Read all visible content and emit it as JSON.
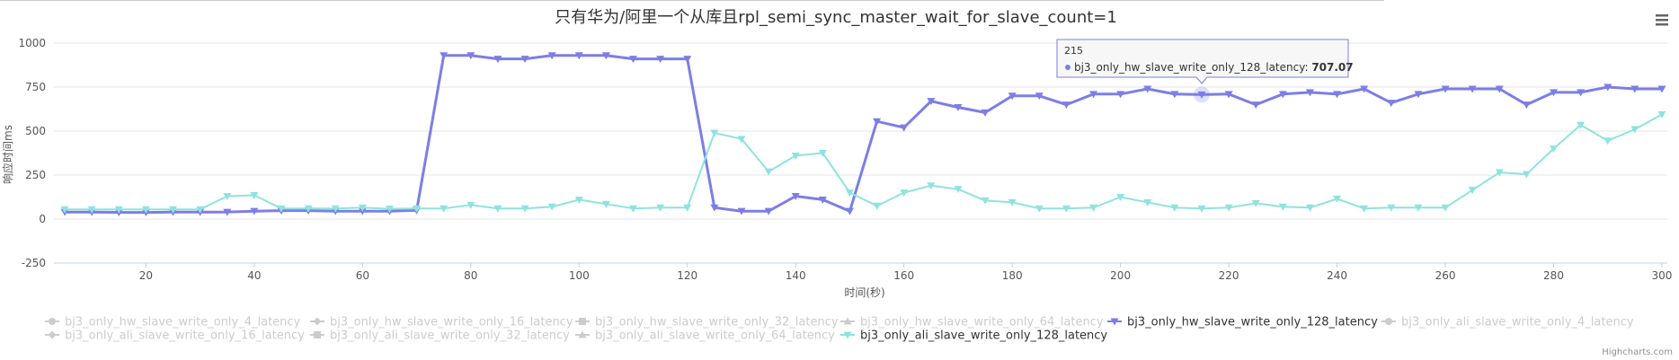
{
  "chart_data": {
    "type": "line",
    "title": "只有华为/阿里一个从库且rpl_semi_sync_master_wait_for_slave_count=1",
    "xlabel": "时间(秒)",
    "ylabel": "响应时间ms",
    "xlim": [
      3,
      301
    ],
    "ylim": [
      -250,
      1000
    ],
    "xticks": [
      20,
      40,
      60,
      80,
      100,
      120,
      140,
      160,
      180,
      200,
      220,
      240,
      260,
      280,
      300
    ],
    "yticks": [
      -250,
      0,
      250,
      500,
      750,
      1000
    ],
    "grid": true,
    "legend_position": "bottom",
    "x": [
      5,
      10,
      15,
      20,
      25,
      30,
      35,
      40,
      45,
      50,
      55,
      60,
      65,
      70,
      75,
      80,
      85,
      90,
      95,
      100,
      105,
      110,
      115,
      120,
      125,
      130,
      135,
      140,
      145,
      150,
      155,
      160,
      165,
      170,
      175,
      180,
      185,
      190,
      195,
      200,
      205,
      210,
      215,
      220,
      225,
      230,
      235,
      240,
      245,
      250,
      255,
      260,
      265,
      270,
      275,
      280,
      285,
      290,
      295,
      300
    ],
    "series": [
      {
        "name": "bj3_only_hw_slave_write_only_4_latency",
        "visible": false,
        "marker": "circle"
      },
      {
        "name": "bj3_only_hw_slave_write_only_16_latency",
        "visible": false,
        "marker": "diamond"
      },
      {
        "name": "bj3_only_hw_slave_write_only_32_latency",
        "visible": false,
        "marker": "square"
      },
      {
        "name": "bj3_only_hw_slave_write_only_64_latency",
        "visible": false,
        "marker": "triangle"
      },
      {
        "name": "bj3_only_hw_slave_write_only_128_latency",
        "visible": true,
        "marker": "triangle-down",
        "color": "#7c7ee6",
        "values": [
          40,
          40,
          38,
          38,
          40,
          40,
          40,
          45,
          48,
          48,
          45,
          45,
          45,
          50,
          930,
          930,
          910,
          910,
          930,
          930,
          930,
          910,
          910,
          910,
          65,
          45,
          45,
          130,
          110,
          45,
          555,
          520,
          670,
          635,
          605,
          700,
          700,
          650,
          710,
          710,
          740,
          710,
          707.07,
          710,
          650,
          710,
          720,
          710,
          740,
          660,
          710,
          740,
          740,
          740,
          650,
          720,
          720,
          750,
          740,
          740
        ]
      },
      {
        "name": "bj3_only_ali_slave_write_only_4_latency",
        "visible": false,
        "marker": "circle"
      },
      {
        "name": "bj3_only_ali_slave_write_only_16_latency",
        "visible": false,
        "marker": "diamond"
      },
      {
        "name": "bj3_only_ali_slave_write_only_32_latency",
        "visible": false,
        "marker": "square"
      },
      {
        "name": "bj3_only_ali_slave_write_only_64_latency",
        "visible": false,
        "marker": "triangle"
      },
      {
        "name": "bj3_only_ali_slave_write_only_128_latency",
        "visible": true,
        "marker": "triangle-down",
        "color": "#8fe3df",
        "values": [
          55,
          55,
          55,
          55,
          55,
          55,
          130,
          135,
          60,
          60,
          60,
          65,
          58,
          60,
          60,
          80,
          60,
          60,
          70,
          110,
          85,
          60,
          65,
          65,
          490,
          455,
          270,
          360,
          375,
          150,
          75,
          150,
          190,
          170,
          105,
          95,
          60,
          60,
          65,
          125,
          95,
          65,
          60,
          65,
          90,
          70,
          65,
          115,
          60,
          65,
          65,
          65,
          165,
          265,
          255,
          400,
          535,
          445,
          510,
          595
        ]
      }
    ],
    "tooltip": {
      "x": "215",
      "series": "bj3_only_hw_slave_write_only_128_latency",
      "value": "707.07",
      "label": "bj3_only_hw_slave_write_only_128_latency: "
    },
    "credit": "Highcharts.com",
    "inactive_color": "#cccccc",
    "text_color": "#333333",
    "menu_icon": "hamburger-menu-icon"
  }
}
